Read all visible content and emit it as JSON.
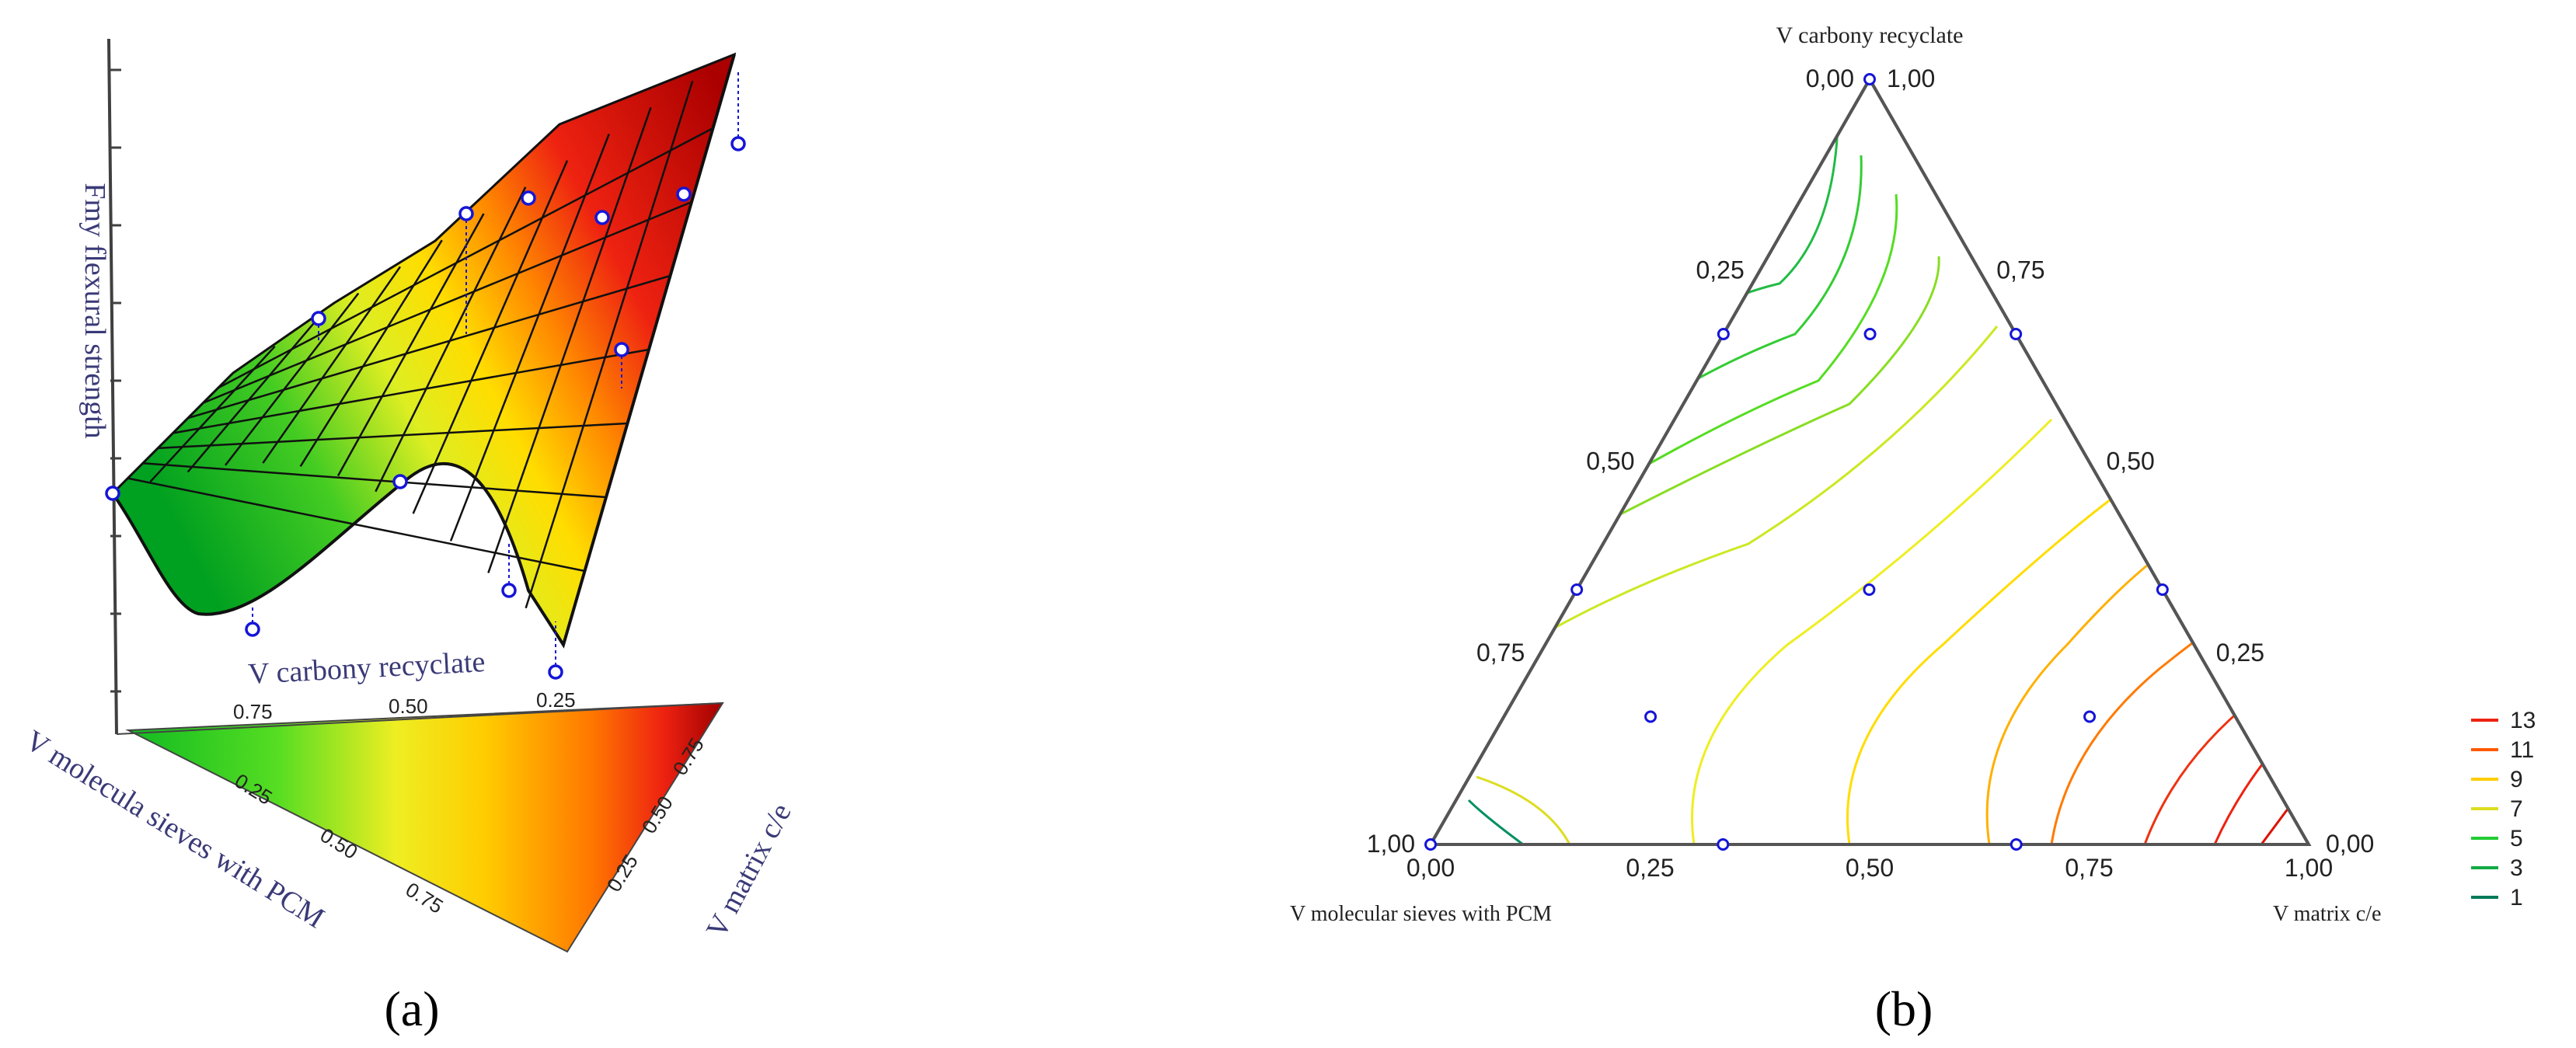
{
  "panel_labels": {
    "a": "(a)",
    "b": "(b)"
  },
  "colors": {
    "marker": "#1515d8",
    "axis": "#404040",
    "label_text": "#3a3a78",
    "grid": "#000000",
    "contour_scale": [
      "#009060",
      "#11bb33",
      "#44dd22",
      "#dddd22",
      "#ffcc00",
      "#ff7a00",
      "#ee2211",
      "#b00000"
    ]
  },
  "chart_data": [
    {
      "id": "surface",
      "type": "surface3d",
      "title": "",
      "zlabel": "Fmy flexural strength",
      "axis_labels": {
        "carbony": "V carbony recyclate",
        "sieves": "V molecula sieves with PCM",
        "matrix": "V matrix c/e"
      },
      "ticks": {
        "carbony": [
          "0.75",
          "0.50",
          "0.25"
        ],
        "sieves": [
          "0.25",
          "0.50",
          "0.75"
        ],
        "matrix": [
          "0.75",
          "0.50",
          "0.25"
        ]
      }
    },
    {
      "id": "ternary",
      "type": "ternary_contour",
      "title": "",
      "vertex_labels": {
        "top": "V carbony recyclate",
        "left": "V  molecular sieves with PCM",
        "right": "V  matrix c/e"
      },
      "left_edge_ticks": [
        "1,00",
        "0,75",
        "0,50",
        "0,25",
        "0,00"
      ],
      "right_edge_ticks": [
        "1,00",
        "0,75",
        "0,50",
        "0,25",
        "0,00"
      ],
      "bottom_ticks": [
        "0,00",
        "0,25",
        "0,50",
        "0,75",
        "1,00"
      ],
      "legend": [
        {
          "label": "13",
          "color": "#ee2211"
        },
        {
          "label": "11",
          "color": "#ff5a00"
        },
        {
          "label": "9",
          "color": "#ffcc00"
        },
        {
          "label": "7",
          "color": "#dddd22"
        },
        {
          "label": "5",
          "color": "#22cc33"
        },
        {
          "label": "3",
          "color": "#11aa44"
        },
        {
          "label": "1",
          "color": "#007a5a"
        }
      ],
      "design_points": [
        {
          "carbony": 1.0,
          "matrix": 0.0
        },
        {
          "carbony": 0.667,
          "matrix": 0.0
        },
        {
          "carbony": 0.667,
          "matrix": 0.167
        },
        {
          "carbony": 0.667,
          "matrix": 0.333
        },
        {
          "carbony": 0.333,
          "matrix": 0.0
        },
        {
          "carbony": 0.333,
          "matrix": 0.333
        },
        {
          "carbony": 0.333,
          "matrix": 0.667
        },
        {
          "carbony": 0.167,
          "matrix": 0.167
        },
        {
          "carbony": 0.167,
          "matrix": 0.667
        },
        {
          "carbony": 0.0,
          "matrix": 0.0
        },
        {
          "carbony": 0.0,
          "matrix": 0.333
        },
        {
          "carbony": 0.0,
          "matrix": 0.667
        }
      ]
    }
  ]
}
